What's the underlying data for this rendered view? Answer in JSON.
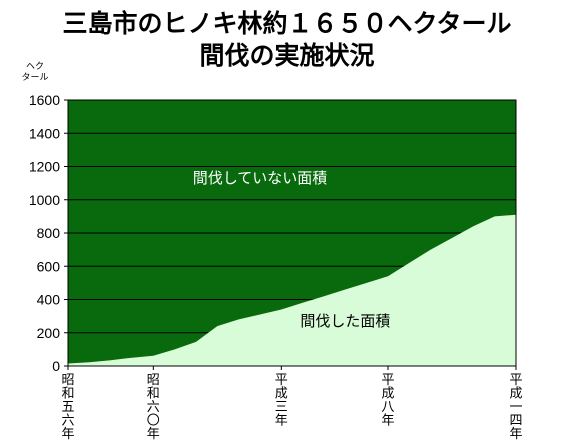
{
  "chart_data": {
    "type": "area",
    "title": "三島市のヒノキ林約１６５０ヘクタール",
    "subtitle": "間伐の実施状況",
    "ylabel": "ヘクタール",
    "ylim": [
      0,
      1600
    ],
    "yticks": [
      0,
      200,
      400,
      600,
      800,
      1000,
      1200,
      1400,
      1600
    ],
    "grid": true,
    "x_tick_labels": [
      "昭和五六年",
      "昭和六〇年",
      "平成三年",
      "平成八年",
      "平成一四年"
    ],
    "x_range_years": [
      1981,
      2002
    ],
    "x_tick_years": [
      1981,
      1985,
      1991,
      1996,
      2002
    ],
    "total": 1650,
    "series": [
      {
        "name": "間伐した面積",
        "x": [
          1981,
          1982,
          1983,
          1984,
          1985,
          1986,
          1987,
          1988,
          1989,
          1990,
          1991,
          1992,
          1993,
          1994,
          1995,
          1996,
          1997,
          1998,
          1999,
          2000,
          2001,
          2002
        ],
        "values": [
          15,
          22,
          35,
          50,
          62,
          100,
          145,
          240,
          280,
          310,
          340,
          380,
          420,
          460,
          500,
          540,
          620,
          700,
          770,
          840,
          900,
          910
        ]
      },
      {
        "name": "間伐していない面積",
        "values_note": ""
      }
    ],
    "annotations": [
      {
        "text": "間伐していない面積",
        "at": {
          "x": 1990,
          "y": 1100
        }
      },
      {
        "text": "間伐した面積",
        "at": {
          "x": 1994,
          "y": 240
        }
      }
    ]
  },
  "colors": {
    "unthinned": "#086a0c",
    "thinned": "#d8fcd8",
    "unthinned_text": "#ffffff",
    "thinned_text": "#000000",
    "grid": "#000000"
  }
}
